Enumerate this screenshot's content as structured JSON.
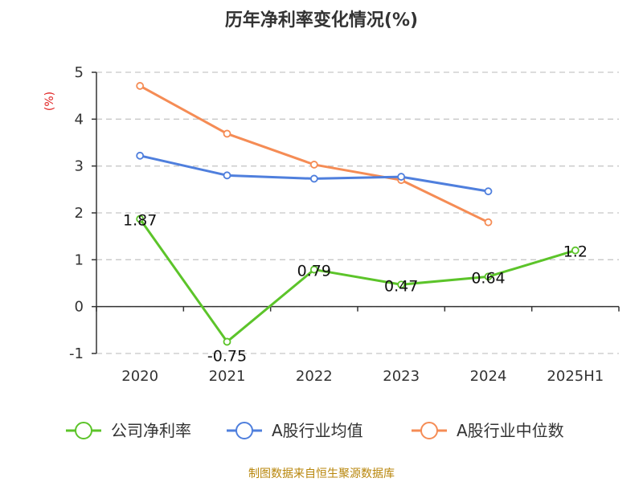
{
  "chart_data": {
    "type": "line",
    "title": "历年净利率变化情况(%)",
    "ylabel": "(%)",
    "categories": [
      "2020",
      "2021",
      "2022",
      "2023",
      "2024",
      "2025H1"
    ],
    "ylim": [
      -1,
      5
    ],
    "yticks": [
      "-1",
      "0",
      "1",
      "2",
      "3",
      "4",
      "5"
    ],
    "grid": true,
    "legend_position": "bottom",
    "series": [
      {
        "name": "公司净利率",
        "color": "#5cc42a",
        "values": [
          1.87,
          -0.75,
          0.79,
          0.47,
          0.64,
          1.2
        ],
        "labels": [
          "1.87",
          "-0.75",
          "0.79",
          "0.47",
          "0.64",
          "1.2"
        ]
      },
      {
        "name": "A股行业均值",
        "color": "#4f7fdd",
        "values": [
          3.22,
          2.8,
          2.73,
          2.77,
          2.46,
          null
        ]
      },
      {
        "name": "A股行业中位数",
        "color": "#f58c55",
        "values": [
          4.71,
          3.69,
          3.03,
          2.7,
          1.8,
          null
        ]
      }
    ],
    "source": "制图数据来自恒生聚源数据库"
  }
}
